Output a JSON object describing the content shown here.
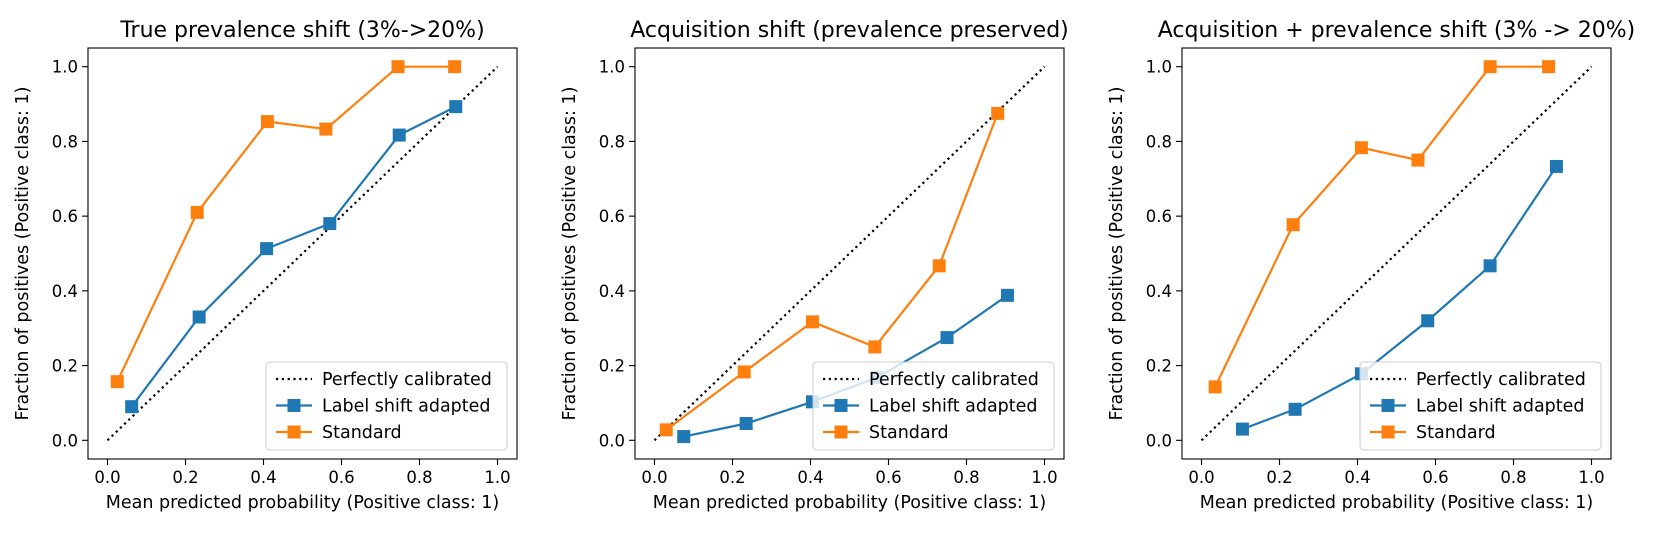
{
  "chart_data": [
    {
      "type": "line",
      "title": "True prevalence shift (3%->20%)",
      "xlabel": "Mean predicted probability (Positive class: 1)",
      "ylabel": "Fraction of positives (Positive class: 1)",
      "xlim": [
        -0.05,
        1.05
      ],
      "ylim": [
        -0.05,
        1.05
      ],
      "xticks": [
        "0.0",
        "0.2",
        "0.4",
        "0.6",
        "0.8",
        "1.0"
      ],
      "yticks": [
        "0.0",
        "0.2",
        "0.4",
        "0.6",
        "0.8",
        "1.0"
      ],
      "legend_position": "lower-right",
      "reference": {
        "name": "Perfectly calibrated",
        "x": [
          0,
          1
        ],
        "y": [
          0,
          1
        ],
        "color": "#000000",
        "style": "dotted"
      },
      "series": [
        {
          "name": "Label shift adapted",
          "color": "#1f77b4",
          "x": [
            0.062,
            0.235,
            0.408,
            0.57,
            0.748,
            0.893
          ],
          "y": [
            0.09,
            0.33,
            0.513,
            0.58,
            0.817,
            0.893
          ]
        },
        {
          "name": "Standard",
          "color": "#ff7f0e",
          "x": [
            0.025,
            0.23,
            0.41,
            0.56,
            0.745,
            0.89
          ],
          "y": [
            0.157,
            0.61,
            0.853,
            0.833,
            1.0,
            1.0
          ]
        }
      ]
    },
    {
      "type": "line",
      "title": "Acquisition shift (prevalence preserved)",
      "xlabel": "Mean predicted probability (Positive class: 1)",
      "ylabel": "Fraction of positives (Positive class: 1)",
      "xlim": [
        -0.05,
        1.05
      ],
      "ylim": [
        -0.05,
        1.05
      ],
      "xticks": [
        "0.0",
        "0.2",
        "0.4",
        "0.6",
        "0.8",
        "1.0"
      ],
      "yticks": [
        "0.0",
        "0.2",
        "0.4",
        "0.6",
        "0.8",
        "1.0"
      ],
      "legend_position": "lower-right",
      "reference": {
        "name": "Perfectly calibrated",
        "x": [
          0,
          1
        ],
        "y": [
          0,
          1
        ],
        "color": "#000000",
        "style": "dotted"
      },
      "series": [
        {
          "name": "Label shift adapted",
          "color": "#1f77b4",
          "x": [
            0.075,
            0.235,
            0.405,
            0.57,
            0.75,
            0.905
          ],
          "y": [
            0.01,
            0.045,
            0.103,
            0.168,
            0.275,
            0.388
          ]
        },
        {
          "name": "Standard",
          "color": "#ff7f0e",
          "x": [
            0.03,
            0.23,
            0.405,
            0.565,
            0.73,
            0.88
          ],
          "y": [
            0.028,
            0.183,
            0.317,
            0.25,
            0.467,
            0.875
          ]
        }
      ]
    },
    {
      "type": "line",
      "title": "Acquisition + prevalence shift (3% -> 20%)",
      "xlabel": "Mean predicted probability (Positive class: 1)",
      "ylabel": "Fraction of positives (Positive class: 1)",
      "xlim": [
        -0.05,
        1.05
      ],
      "ylim": [
        -0.05,
        1.05
      ],
      "xticks": [
        "0.0",
        "0.2",
        "0.4",
        "0.6",
        "0.8",
        "1.0"
      ],
      "yticks": [
        "0.0",
        "0.2",
        "0.4",
        "0.6",
        "0.8",
        "1.0"
      ],
      "legend_position": "lower-right",
      "reference": {
        "name": "Perfectly calibrated",
        "x": [
          0,
          1
        ],
        "y": [
          0,
          1
        ],
        "color": "#000000",
        "style": "dotted"
      },
      "series": [
        {
          "name": "Label shift adapted",
          "color": "#1f77b4",
          "x": [
            0.105,
            0.24,
            0.41,
            0.58,
            0.74,
            0.91
          ],
          "y": [
            0.03,
            0.083,
            0.178,
            0.32,
            0.467,
            0.733
          ]
        },
        {
          "name": "Standard",
          "color": "#ff7f0e",
          "x": [
            0.035,
            0.235,
            0.41,
            0.555,
            0.74,
            0.89
          ],
          "y": [
            0.143,
            0.577,
            0.783,
            0.75,
            1.0,
            1.0
          ]
        }
      ]
    }
  ]
}
